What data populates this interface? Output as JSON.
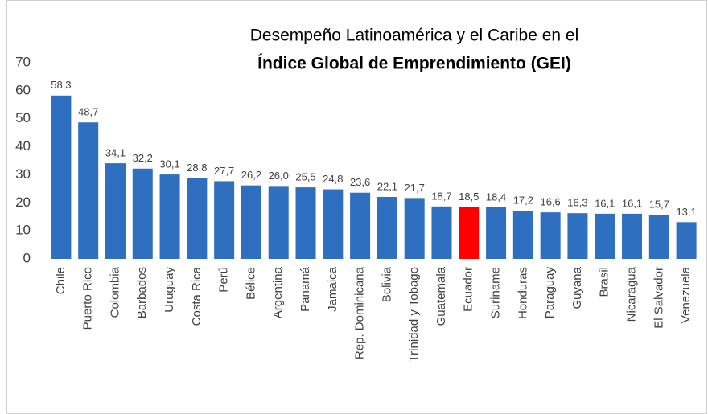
{
  "chart_data": {
    "type": "bar",
    "title": [
      "Desempeño Latinoamérica y el Caribe en el",
      "Índice Global de Emprendimiento (GEI)"
    ],
    "categories": [
      "Chile",
      "Puerto Rico",
      "Colombia",
      "Barbados",
      "Uruguay",
      "Costa Rica",
      "Perú",
      "Bélice",
      "Argentina",
      "Panamá",
      "Jamaica",
      "Rep. Dominicana",
      "Bolivia",
      "Trinidad y Tobago",
      "Guatemala",
      "Ecuador",
      "Suriname",
      "Honduras",
      "Paraguay",
      "Guyana",
      "Brasil",
      "Nicaragua",
      "El Salvador",
      "Venezuela"
    ],
    "values": [
      58.3,
      48.7,
      34.1,
      32.2,
      30.1,
      28.8,
      27.7,
      26.2,
      26.0,
      25.5,
      24.8,
      23.6,
      22.1,
      21.7,
      18.7,
      18.5,
      18.4,
      17.2,
      16.6,
      16.3,
      16.1,
      16.1,
      15.7,
      13.1
    ],
    "value_labels": [
      "58,3",
      "48,7",
      "34,1",
      "32,2",
      "30,1",
      "28,8",
      "27,7",
      "26,2",
      "26,0",
      "25,5",
      "24,8",
      "23,6",
      "22,1",
      "21,7",
      "18,7",
      "18,5",
      "18,4",
      "17,2",
      "16,6",
      "16,3",
      "16,1",
      "16,1",
      "15,7",
      "13,1"
    ],
    "colors": [
      "#2e6fc0",
      "#2e6fc0",
      "#2e6fc0",
      "#2e6fc0",
      "#2e6fc0",
      "#2e6fc0",
      "#2e6fc0",
      "#2e6fc0",
      "#2e6fc0",
      "#2e6fc0",
      "#2e6fc0",
      "#2e6fc0",
      "#2e6fc0",
      "#2e6fc0",
      "#2e6fc0",
      "#ff0000",
      "#2e6fc0",
      "#2e6fc0",
      "#2e6fc0",
      "#2e6fc0",
      "#2e6fc0",
      "#2e6fc0",
      "#2e6fc0",
      "#2e6fc0"
    ],
    "ylim": [
      0,
      70
    ],
    "yticks": [
      0,
      10,
      20,
      30,
      40,
      50,
      60,
      70
    ],
    "grid": false
  }
}
